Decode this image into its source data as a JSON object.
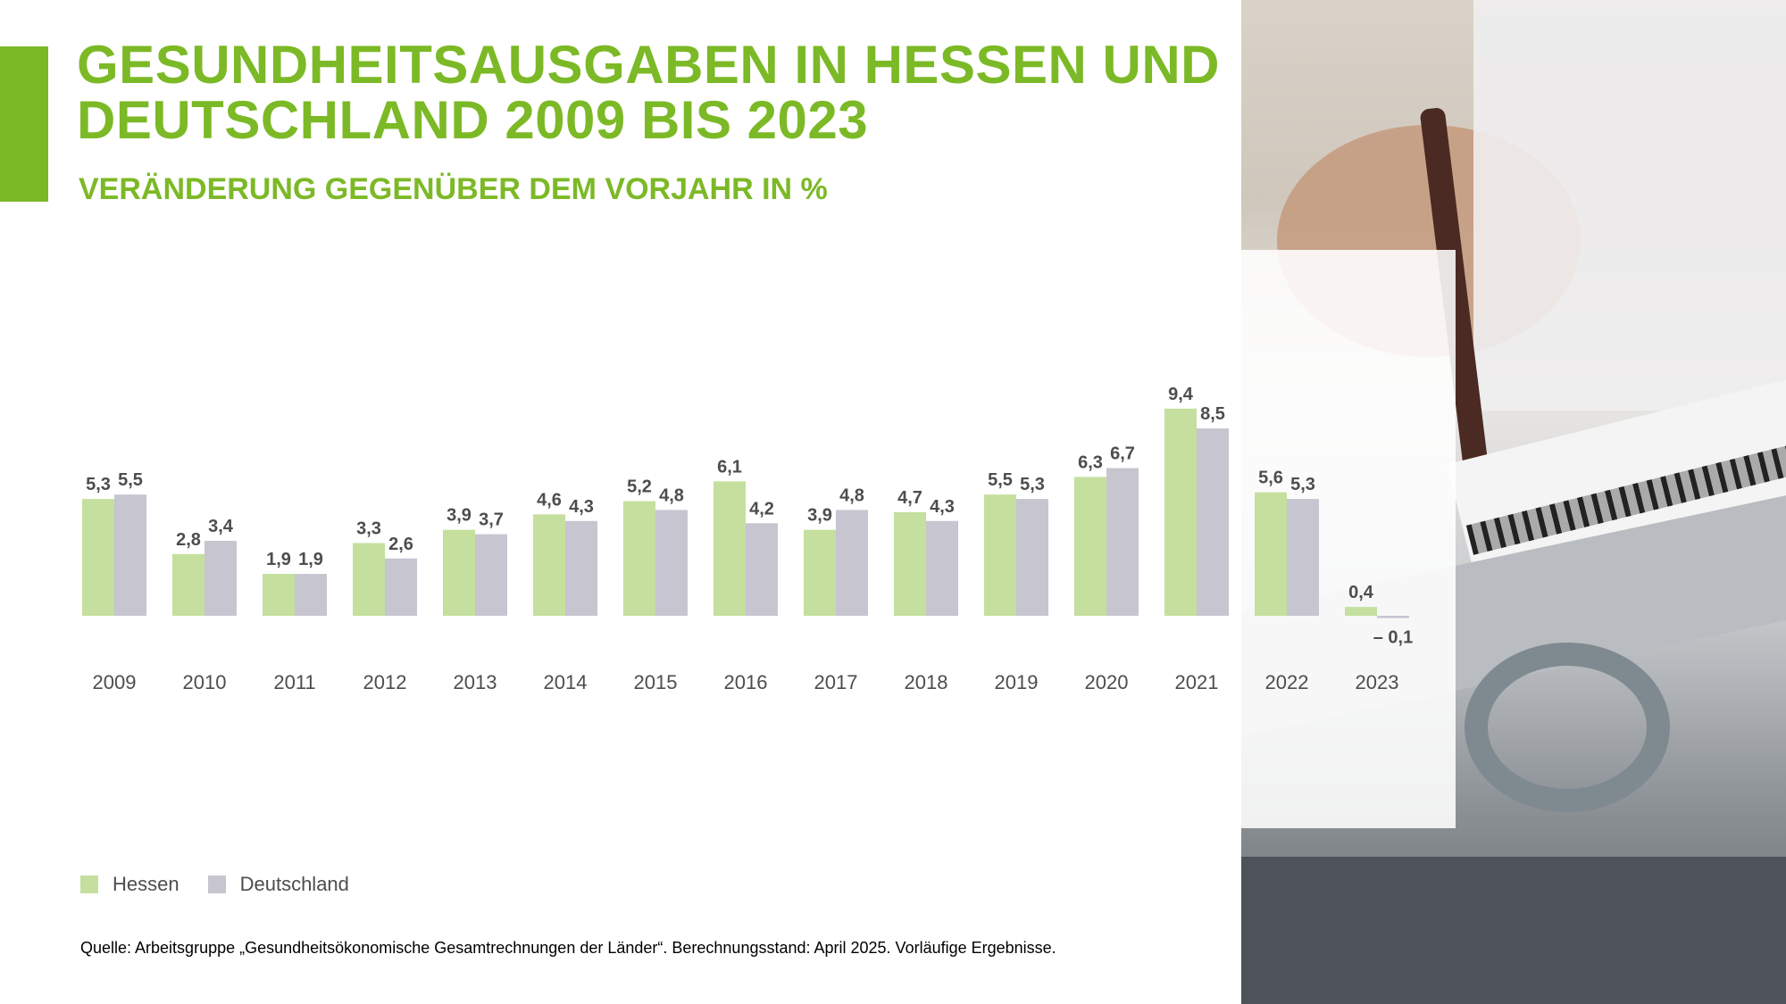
{
  "title": "GESUNDHEITSAUSGABEN IN HESSEN UND DEUTSCHLAND 2009 BIS 2023",
  "subtitle": "VERÄNDERUNG GEGENÜBER DEM VORJAHR IN %",
  "source": "Quelle: Arbeitsgruppe „Gesundheitsökonomische Gesamtrechnungen der Länder“. Berechnungsstand: April 2025. Vorläufige Ergebnisse.",
  "colors": {
    "accent": "#7cb926",
    "hessen": "#c5df9e",
    "deutschland": "#c6c5d0"
  },
  "chart_data": {
    "type": "bar",
    "categories": [
      "2009",
      "2010",
      "2011",
      "2012",
      "2013",
      "2014",
      "2015",
      "2016",
      "2017",
      "2018",
      "2019",
      "2020",
      "2021",
      "2022",
      "2023"
    ],
    "series": [
      {
        "name": "Hessen",
        "values": [
          5.3,
          2.8,
          1.9,
          3.3,
          3.9,
          4.6,
          5.2,
          6.1,
          3.9,
          4.7,
          5.5,
          6.3,
          9.4,
          5.6,
          0.4
        ],
        "labels": [
          "5,3",
          "2,8",
          "1,9",
          "3,3",
          "3,9",
          "4,6",
          "5,2",
          "6,1",
          "3,9",
          "4,7",
          "5,5",
          "6,3",
          "9,4",
          "5,6",
          "0,4"
        ]
      },
      {
        "name": "Deutschland",
        "values": [
          5.5,
          3.4,
          1.9,
          2.6,
          3.7,
          4.3,
          4.8,
          4.2,
          4.8,
          4.3,
          5.3,
          6.7,
          8.5,
          5.3,
          -0.1
        ],
        "labels": [
          "5,5",
          "3,4",
          "1,9",
          "2,6",
          "3,7",
          "4,3",
          "4,8",
          "4,2",
          "4,8",
          "4,3",
          "5,3",
          "6,7",
          "8,5",
          "5,3",
          "– 0,1"
        ]
      }
    ],
    "legend": "bottom-left"
  }
}
